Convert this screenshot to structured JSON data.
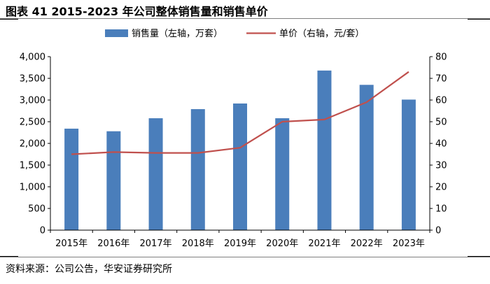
{
  "header": {
    "title": "图表 41 2015-2023 年公司整体销售量和销售单价"
  },
  "footer": {
    "source": "资料来源：公司公告，华安证券研究所"
  },
  "chart_data": {
    "type": "bar",
    "categories": [
      "2015年",
      "2016年",
      "2017年",
      "2018年",
      "2019年",
      "2020年",
      "2021年",
      "2022年",
      "2023年"
    ],
    "series": [
      {
        "name": "销售量（左轴，万套）",
        "type": "bar",
        "axis": "left",
        "color": "#4a7ebb",
        "values": [
          2340,
          2280,
          2580,
          2790,
          2920,
          2580,
          3680,
          3350,
          3010
        ]
      },
      {
        "name": "单价（右轴，元/套）",
        "type": "line",
        "axis": "right",
        "color": "#c0504d",
        "values": [
          35,
          36,
          35.6,
          35.6,
          38,
          50,
          51,
          59,
          73
        ]
      }
    ],
    "left_axis": {
      "min": 0,
      "max": 4000,
      "step": 500,
      "tick_labels": [
        "0",
        "500",
        "1,000",
        "1,500",
        "2,000",
        "2,500",
        "3,000",
        "3,500",
        "4,000"
      ]
    },
    "right_axis": {
      "min": 0,
      "max": 80,
      "step": 10,
      "tick_labels": [
        "0",
        "10",
        "20",
        "30",
        "40",
        "50",
        "60",
        "70",
        "80"
      ]
    },
    "title": "",
    "xlabel": "",
    "ylabel": "",
    "grid": false,
    "legend": "top-center"
  }
}
